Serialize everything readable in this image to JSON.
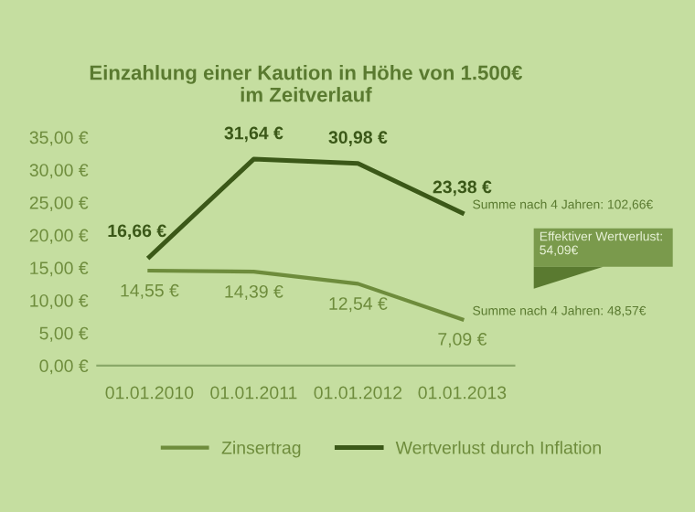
{
  "chart_data": {
    "type": "line",
    "title": "Einzahlung einer Kaution in Höhe von 1.500€\nim Zeitverlauf",
    "categories": [
      "01.01.2010",
      "01.01.2011",
      "01.01.2012",
      "01.01.2013"
    ],
    "series": [
      {
        "name": "Zinsertrag",
        "color": "#6e8c3c",
        "values": [
          14.55,
          14.39,
          12.54,
          7.09
        ],
        "value_labels": [
          "14,55 €",
          "14,39 €",
          "12,54 €",
          "7,09 €"
        ]
      },
      {
        "name": "Wertverlust durch Inflation",
        "color": "#3b5818",
        "values": [
          16.66,
          31.64,
          30.98,
          23.38
        ],
        "value_labels": [
          "16,66 €",
          "31,64 €",
          "30,98 €",
          "23,38 €"
        ]
      }
    ],
    "ylim": [
      0,
      35
    ],
    "yticks": [
      {
        "value": 0,
        "label": "0,00 €"
      },
      {
        "value": 5,
        "label": "5,00 €"
      },
      {
        "value": 10,
        "label": "10,00 €"
      },
      {
        "value": 15,
        "label": "15,00 €"
      },
      {
        "value": 20,
        "label": "20,00 €"
      },
      {
        "value": 25,
        "label": "25,00 €"
      },
      {
        "value": 30,
        "label": "30,00 €"
      },
      {
        "value": 35,
        "label": "35,00 €"
      }
    ],
    "annotations": [
      "Summe nach 4 Jahren: 48,57€",
      "Summe nach 4 Jahren: 102,66€",
      "Effektiver Wertverlust:\n54,09€"
    ],
    "grid": false,
    "legend": "bottom",
    "marker": "none",
    "line_style": "solid"
  }
}
